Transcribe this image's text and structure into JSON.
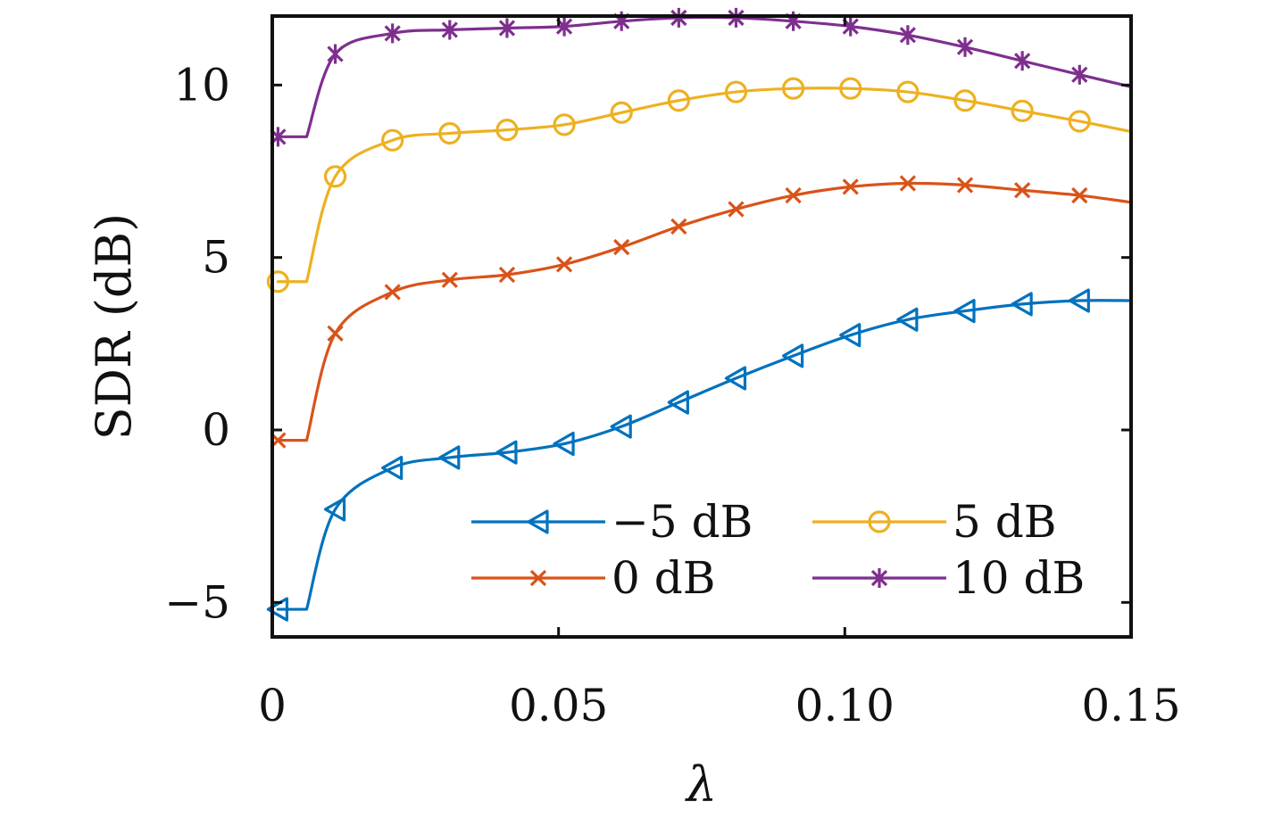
{
  "chart_data": {
    "type": "line",
    "title": "",
    "xlabel": "λ",
    "ylabel": "SDR (dB)",
    "xlim": [
      0,
      0.15
    ],
    "ylim": [
      -6.0,
      12.0
    ],
    "xticks": [
      0,
      0.05,
      0.1,
      0.15
    ],
    "xtick_labels": [
      "0",
      "0.05",
      "0.10",
      "0.15"
    ],
    "yticks": [
      -5,
      0,
      5,
      10
    ],
    "ytick_labels": [
      "−5",
      "0",
      "5",
      "10"
    ],
    "grid": false,
    "legend_position": "bottom-right",
    "series": [
      {
        "name": "−5 dB",
        "color": "#0072BD",
        "marker": "triangle-left",
        "x": [
          0.001,
          0.006,
          0.011,
          0.021,
          0.031,
          0.041,
          0.051,
          0.061,
          0.071,
          0.081,
          0.091,
          0.101,
          0.111,
          0.121,
          0.131,
          0.141,
          0.15
        ],
        "y": [
          -5.2,
          -5.2,
          -2.3,
          -1.1,
          -0.8,
          -0.65,
          -0.4,
          0.1,
          0.8,
          1.5,
          2.15,
          2.75,
          3.2,
          3.45,
          3.65,
          3.75,
          3.75
        ],
        "markers": [
          0.001,
          0.011,
          0.021,
          0.031,
          0.041,
          0.051,
          0.061,
          0.071,
          0.081,
          0.091,
          0.101,
          0.111,
          0.121,
          0.131,
          0.141
        ]
      },
      {
        "name": "0 dB",
        "color": "#D95319",
        "marker": "x",
        "x": [
          0.001,
          0.006,
          0.011,
          0.021,
          0.031,
          0.041,
          0.051,
          0.061,
          0.071,
          0.081,
          0.091,
          0.101,
          0.111,
          0.121,
          0.131,
          0.141,
          0.15
        ],
        "y": [
          -0.3,
          -0.3,
          2.8,
          4.0,
          4.35,
          4.5,
          4.8,
          5.3,
          5.9,
          6.4,
          6.8,
          7.05,
          7.15,
          7.1,
          6.95,
          6.8,
          6.6
        ],
        "markers": [
          0.001,
          0.011,
          0.021,
          0.031,
          0.041,
          0.051,
          0.061,
          0.071,
          0.081,
          0.091,
          0.101,
          0.111,
          0.121,
          0.131,
          0.141
        ]
      },
      {
        "name": "5 dB",
        "color": "#EDB120",
        "marker": "circle",
        "x": [
          0.001,
          0.006,
          0.011,
          0.021,
          0.031,
          0.041,
          0.051,
          0.061,
          0.071,
          0.081,
          0.091,
          0.101,
          0.111,
          0.121,
          0.131,
          0.141,
          0.15
        ],
        "y": [
          4.3,
          4.3,
          7.35,
          8.4,
          8.6,
          8.7,
          8.85,
          9.2,
          9.55,
          9.8,
          9.9,
          9.9,
          9.8,
          9.55,
          9.25,
          8.95,
          8.65
        ],
        "markers": [
          0.001,
          0.011,
          0.021,
          0.031,
          0.041,
          0.051,
          0.061,
          0.071,
          0.081,
          0.091,
          0.101,
          0.111,
          0.121,
          0.131,
          0.141
        ]
      },
      {
        "name": "10 dB",
        "color": "#7E2F8E",
        "marker": "asterisk",
        "x": [
          0.001,
          0.006,
          0.011,
          0.021,
          0.031,
          0.041,
          0.051,
          0.061,
          0.071,
          0.081,
          0.091,
          0.101,
          0.111,
          0.121,
          0.131,
          0.141,
          0.15
        ],
        "y": [
          8.5,
          8.5,
          10.9,
          11.5,
          11.6,
          11.65,
          11.7,
          11.85,
          11.95,
          11.95,
          11.85,
          11.7,
          11.45,
          11.1,
          10.7,
          10.3,
          9.95
        ],
        "markers": [
          0.001,
          0.011,
          0.021,
          0.031,
          0.041,
          0.051,
          0.061,
          0.071,
          0.081,
          0.091,
          0.101,
          0.111,
          0.121,
          0.131,
          0.141
        ]
      }
    ]
  }
}
